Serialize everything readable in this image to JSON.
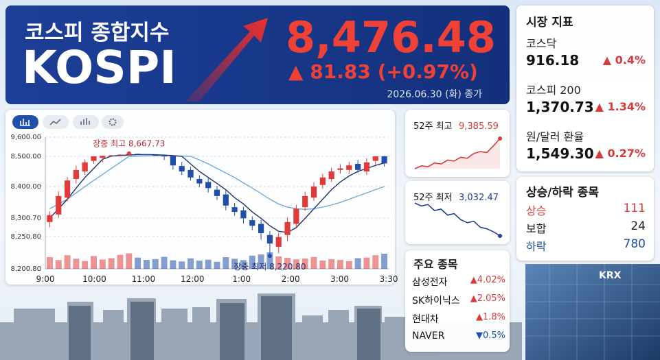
{
  "header": {
    "title_ko": "코스피 종합지수",
    "title": "KOSPI",
    "value": "8,476.48",
    "change": "▲ 81.83 (+0.97%)",
    "date": "2026.06.30 (화) 종가"
  },
  "indicators": {
    "title": "시장 지표",
    "items": [
      {
        "name": "코스닥",
        "value": "916.18",
        "change": "▲ 0.4%"
      },
      {
        "name": "코스피 200",
        "value": "1,370.73",
        "change": "▲ 1.34%"
      },
      {
        "name": "원/달러 환율",
        "value": "1,549.30",
        "change": "▲ 0.27%"
      }
    ]
  },
  "breadth": {
    "title": "상승/하락 종목",
    "items": [
      {
        "name": "상승",
        "value": 111
      },
      {
        "name": "보합",
        "value": 24
      },
      {
        "name": "하락",
        "value": 780
      }
    ]
  },
  "stocks": {
    "title": "주요 종목",
    "items": [
      {
        "name": "삼성전자",
        "change": "▲4.02%"
      },
      {
        "name": "SK하이닉스",
        "change": "▲2.05%"
      },
      {
        "name": "현대차",
        "change": "▲1.8%"
      },
      {
        "name": "NAVER",
        "change": "▼0.5%"
      }
    ]
  },
  "range52": {
    "high": {
      "label": "52주 최고",
      "value": "9,385.59",
      "color": "#d93a3a",
      "values": [
        7800,
        7950,
        7900,
        8100,
        8050,
        8250,
        8200,
        8400,
        8350,
        8600,
        8700,
        8650,
        9000,
        9385.59
      ]
    },
    "low": {
      "label": "52주 최저",
      "value": "3,032.47",
      "color": "#1f3f8f",
      "values": [
        5200,
        5000,
        5100,
        4700,
        4800,
        4400,
        4500,
        4100,
        3900,
        4000,
        3600,
        3500,
        3300,
        3032.47
      ]
    }
  },
  "logo": "KRX",
  "chart_data": {
    "type": "candlestick",
    "xtick_labels": [
      "9:00",
      "10:00",
      "11:00",
      "12:00",
      "1:00",
      "2:00",
      "3:00",
      "3:30"
    ],
    "open": [
      8290,
      8312,
      8365,
      8425,
      8450,
      8485,
      8495,
      8535,
      8565,
      8598,
      8645,
      8615,
      8585,
      8535,
      8505,
      8468,
      8455,
      8425,
      8415,
      8390,
      8375,
      8335,
      8325,
      8295,
      8285,
      8255,
      8235,
      8255,
      8285,
      8335,
      8365,
      8405,
      8425,
      8455,
      8455,
      8475,
      8450,
      8485,
      8505
    ],
    "high": [
      8322,
      8385,
      8432,
      8469,
      8490,
      8516,
      8542,
      8574,
      8618,
      8667.73,
      8657,
      8625,
      8597,
      8550,
      8515,
      8482,
      8465,
      8437,
      8428,
      8402,
      8388,
      8348,
      8336,
      8306,
      8296,
      8266,
      8262,
      8302,
      8342,
      8384,
      8414,
      8442,
      8462,
      8474,
      8482,
      8488,
      8494,
      8514,
      8518
    ],
    "low": [
      8276,
      8302,
      8353,
      8410,
      8438,
      8475,
      8481,
      8523,
      8555,
      8584,
      8605,
      8568,
      8526,
      8488,
      8456,
      8438,
      8420,
      8398,
      8381,
      8358,
      8325,
      8308,
      8286,
      8268,
      8246,
      8220.8,
      8225,
      8243,
      8275,
      8323,
      8355,
      8393,
      8415,
      8443,
      8441,
      8445,
      8438,
      8473,
      8466
    ],
    "close": [
      8310,
      8370,
      8420,
      8455,
      8480,
      8500,
      8530,
      8560,
      8600,
      8640,
      8620,
      8580,
      8540,
      8500,
      8470,
      8450,
      8430,
      8410,
      8395,
      8370,
      8340,
      8320,
      8300,
      8280,
      8260,
      8240,
      8250,
      8290,
      8330,
      8370,
      8400,
      8430,
      8450,
      8460,
      8470,
      8455,
      8480,
      8500,
      8476.48
    ],
    "volume": [
      60,
      45,
      70,
      52,
      40,
      66,
      48,
      55,
      72,
      80,
      58,
      46,
      50,
      62,
      44,
      38,
      54,
      42,
      47,
      36,
      60,
      52,
      45,
      68,
      74,
      85,
      64,
      57,
      49,
      53,
      61,
      43,
      50,
      46,
      40,
      55,
      58,
      70,
      78
    ],
    "ma_short": [
      8300,
      8330,
      8360,
      8395,
      8430,
      8460,
      8490,
      8515,
      8545,
      8575,
      8600,
      8605,
      8595,
      8570,
      8540,
      8505,
      8475,
      8450,
      8430,
      8410,
      8390,
      8365,
      8345,
      8320,
      8300,
      8280,
      8265,
      8262,
      8275,
      8300,
      8330,
      8360,
      8390,
      8415,
      8435,
      8450,
      8460,
      8470,
      8478
    ],
    "ma_long": [
      8330,
      8345,
      8360,
      8380,
      8400,
      8420,
      8440,
      8460,
      8480,
      8500,
      8515,
      8525,
      8530,
      8528,
      8522,
      8512,
      8500,
      8488,
      8475,
      8460,
      8445,
      8430,
      8412,
      8395,
      8378,
      8360,
      8345,
      8335,
      8330,
      8328,
      8330,
      8335,
      8342,
      8350,
      8360,
      8370,
      8380,
      8390,
      8400
    ],
    "up_color": "#e03a3a",
    "down_color": "#1f4fa8",
    "ma_short_color": "#1a2f6e",
    "ma_long_color": "#6fa8d6",
    "ylim": [
      8200.8,
      9600
    ],
    "yticks": [
      {
        "value": 9600,
        "label": "9,600.00"
      },
      {
        "value": 8500,
        "label": "8,500.00"
      },
      {
        "value": 8400,
        "label": "8,400.00"
      },
      {
        "value": 8300.7,
        "label": "8,300.70"
      },
      {
        "value": 8250.8,
        "label": "8,250.80"
      },
      {
        "value": 8200.8,
        "label": "8,200.80"
      }
    ],
    "annotations": [
      {
        "text": "장중 최고 8,667.73"
      },
      {
        "text": "장중 최저 8,220.80"
      }
    ],
    "grid": true
  }
}
